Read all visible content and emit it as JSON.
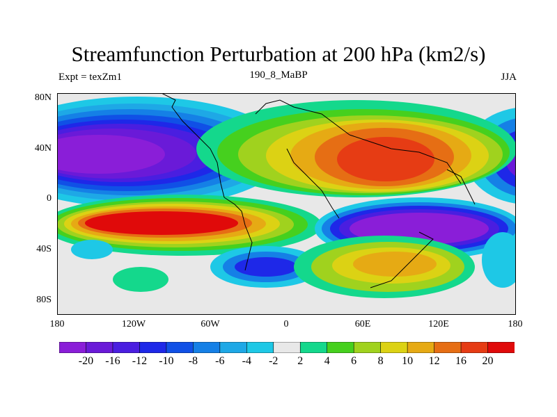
{
  "title": "Streamfunction Perturbation at 200 hPa (km2/s)",
  "subtitle_left": "Expt = texZm1",
  "subtitle_center": "190_8_MaBP",
  "subtitle_right": "JJA",
  "lat_ticks": [
    "80N",
    "40N",
    "0",
    "40S",
    "80S"
  ],
  "lon_ticks": [
    "180",
    "120W",
    "60W",
    "0",
    "60E",
    "120E",
    "180"
  ],
  "colorbar": {
    "labels": [
      "-20",
      "-16",
      "-12",
      "-10",
      "-8",
      "-6",
      "-4",
      "-2",
      "2",
      "4",
      "6",
      "8",
      "10",
      "12",
      "16",
      "20"
    ],
    "colors": [
      "#8a1ed8",
      "#6a1ad8",
      "#4a1ee0",
      "#1e28e8",
      "#1050e6",
      "#1580e6",
      "#1ea8e6",
      "#1ec8e6",
      "#e8e8e8",
      "#14d88c",
      "#46d01e",
      "#a0d21e",
      "#dcd214",
      "#e6aa14",
      "#e66e14",
      "#e63c14",
      "#e00a0a"
    ]
  },
  "map_data": {
    "blobs": [
      {
        "name": "neg-north-pacific",
        "level": -20
      },
      {
        "name": "pos-south-pacific",
        "level": 20
      },
      {
        "name": "neg-south-indian",
        "level": -20
      },
      {
        "name": "pos-asia",
        "level": 16
      },
      {
        "name": "pos-south-indian-ocean",
        "level": 12
      },
      {
        "name": "neg-south-atlantic",
        "level": -12
      },
      {
        "name": "pos-southwest",
        "level": 4
      }
    ]
  }
}
